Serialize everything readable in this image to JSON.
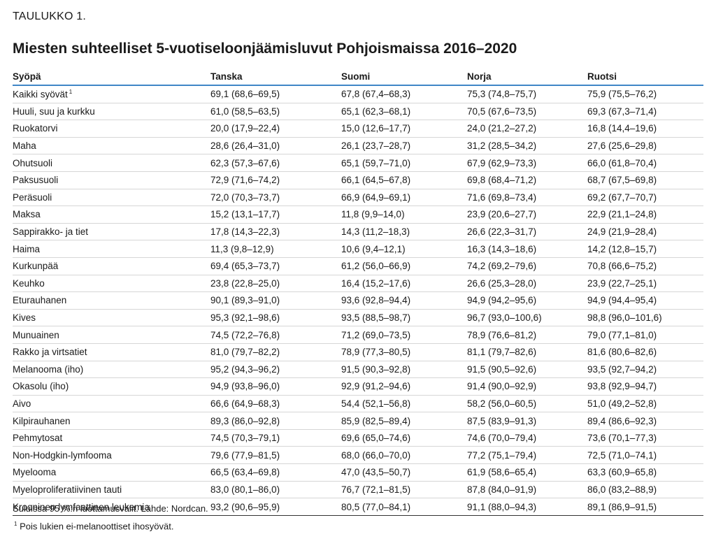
{
  "table_label": "TAULUKKO 1.",
  "title": "Miesten suhteelliset 5-vuotiseloonjäämisluvut Pohjoismaissa 2016–2020",
  "columns": [
    "Syöpä",
    "Tanska",
    "Suomi",
    "Norja",
    "Ruotsi"
  ],
  "rows": [
    {
      "name": "Kaikki syövät",
      "sup": "1",
      "values": [
        "69,1 (68,6–69,5)",
        "67,8 (67,4–68,3)",
        "75,3 (74,8–75,7)",
        "75,9 (75,5–76,2)"
      ]
    },
    {
      "name": "Huuli, suu ja kurkku",
      "values": [
        "61,0 (58,5–63,5)",
        "65,1 (62,3–68,1)",
        "70,5 (67,6–73,5)",
        "69,3 (67,3–71,4)"
      ]
    },
    {
      "name": "Ruokatorvi",
      "values": [
        "20,0 (17,9–22,4)",
        "15,0 (12,6–17,7)",
        "24,0 (21,2–27,2)",
        "16,8 (14,4–19,6)"
      ]
    },
    {
      "name": "Maha",
      "values": [
        "28,6 (26,4–31,0)",
        "26,1 (23,7–28,7)",
        "31,2 (28,5–34,2)",
        "27,6 (25,6–29,8)"
      ]
    },
    {
      "name": "Ohutsuoli",
      "values": [
        "62,3 (57,3–67,6)",
        "65,1 (59,7–71,0)",
        "67,9 (62,9–73,3)",
        "66,0 (61,8–70,4)"
      ]
    },
    {
      "name": "Paksusuoli",
      "values": [
        "72,9 (71,6–74,2)",
        "66,1 (64,5–67,8)",
        "69,8 (68,4–71,2)",
        "68,7 (67,5–69,8)"
      ]
    },
    {
      "name": "Peräsuoli",
      "values": [
        "72,0 (70,3–73,7)",
        "66,9 (64,9–69,1)",
        "71,6 (69,8–73,4)",
        "69,2 (67,7–70,7)"
      ]
    },
    {
      "name": "Maksa",
      "values": [
        "15,2 (13,1–17,7)",
        "11,8 (9,9–14,0)",
        "23,9 (20,6–27,7)",
        "22,9 (21,1–24,8)"
      ]
    },
    {
      "name": "Sappirakko- ja tiet",
      "values": [
        "17,8 (14,3–22,3)",
        "14,3 (11,2–18,3)",
        "26,6 (22,3–31,7)",
        "24,9 (21,9–28,4)"
      ]
    },
    {
      "name": "Haima",
      "values": [
        "11,3 (9,8–12,9)",
        "10,6 (9,4–12,1)",
        "16,3 (14,3–18,6)",
        "14,2 (12,8–15,7)"
      ]
    },
    {
      "name": "Kurkunpää",
      "values": [
        "69,4 (65,3–73,7)",
        "61,2 (56,0–66,9)",
        "74,2 (69,2–79,6)",
        "70,8 (66,6–75,2)"
      ]
    },
    {
      "name": "Keuhko",
      "values": [
        "23,8 (22,8–25,0)",
        "16,4 (15,2–17,6)",
        "26,6 (25,3–28,0)",
        "23,9 (22,7–25,1)"
      ]
    },
    {
      "name": "Eturauhanen",
      "values": [
        "90,1 (89,3–91,0)",
        "93,6 (92,8–94,4)",
        "94,9 (94,2–95,6)",
        "94,9 (94,4–95,4)"
      ]
    },
    {
      "name": "Kives",
      "values": [
        "95,3 (92,1–98,6)",
        "93,5 (88,5–98,7)",
        "96,7 (93,0–100,6)",
        "98,8 (96,0–101,6)"
      ]
    },
    {
      "name": "Munuainen",
      "values": [
        "74,5 (72,2–76,8)",
        "71,2 (69,0–73,5)",
        "78,9 (76,6–81,2)",
        "79,0 (77,1–81,0)"
      ]
    },
    {
      "name": "Rakko ja virtsatiet",
      "values": [
        "81,0 (79,7–82,2)",
        "78,9 (77,3–80,5)",
        "81,1 (79,7–82,6)",
        "81,6 (80,6–82,6)"
      ]
    },
    {
      "name": "Melanooma (iho)",
      "values": [
        "95,2 (94,3–96,2)",
        "91,5 (90,3–92,8)",
        "91,5 (90,5–92,6)",
        "93,5 (92,7–94,2)"
      ]
    },
    {
      "name": "Okasolu (iho)",
      "values": [
        "94,9 (93,8–96,0)",
        "92,9 (91,2–94,6)",
        "91,4 (90,0–92,9)",
        "93,8 (92,9–94,7)"
      ]
    },
    {
      "name": "Aivo",
      "values": [
        "66,6 (64,9–68,3)",
        "54,4 (52,1–56,8)",
        "58,2 (56,0–60,5)",
        "51,0 (49,2–52,8)"
      ]
    },
    {
      "name": "Kilpirauhanen",
      "values": [
        "89,3 (86,0–92,8)",
        "85,9 (82,5–89,4)",
        "87,5 (83,9–91,3)",
        "89,4 (86,6–92,3)"
      ]
    },
    {
      "name": "Pehmytosat",
      "values": [
        "74,5 (70,3–79,1)",
        "69,6 (65,0–74,6)",
        "74,6 (70,0–79,4)",
        "73,6 (70,1–77,3)"
      ]
    },
    {
      "name": "Non-Hodgkin-lymfooma",
      "values": [
        "79,6 (77,9–81,5)",
        "68,0 (66,0–70,0)",
        "77,2 (75,1–79,4)",
        "72,5 (71,0–74,1)"
      ]
    },
    {
      "name": "Myelooma",
      "values": [
        "66,5 (63,4–69,8)",
        "47,0 (43,5–50,7)",
        "61,9 (58,6–65,4)",
        "63,3 (60,9–65,8)"
      ]
    },
    {
      "name": "Myeloproliferatiivinen tauti",
      "values": [
        "83,0 (80,1–86,0)",
        "76,7 (72,1–81,5)",
        "87,8 (84,0–91,9)",
        "86,0 (83,2–88,9)"
      ]
    },
    {
      "name": "Krooninen lymfaattinen leukemia",
      "values": [
        "93,2 (90,6–95,9)",
        "80,5 (77,0–84,1)",
        "91,1 (88,0–94,3)",
        "89,1 (86,9–91,5)"
      ]
    }
  ],
  "notes": {
    "source": "Suluissa 95 %:n luottamusvälit. Lähde: Nordcan.",
    "footnote_marker": "1",
    "footnote": "Pois lukien ei-melanoottiset ihosyövät."
  }
}
